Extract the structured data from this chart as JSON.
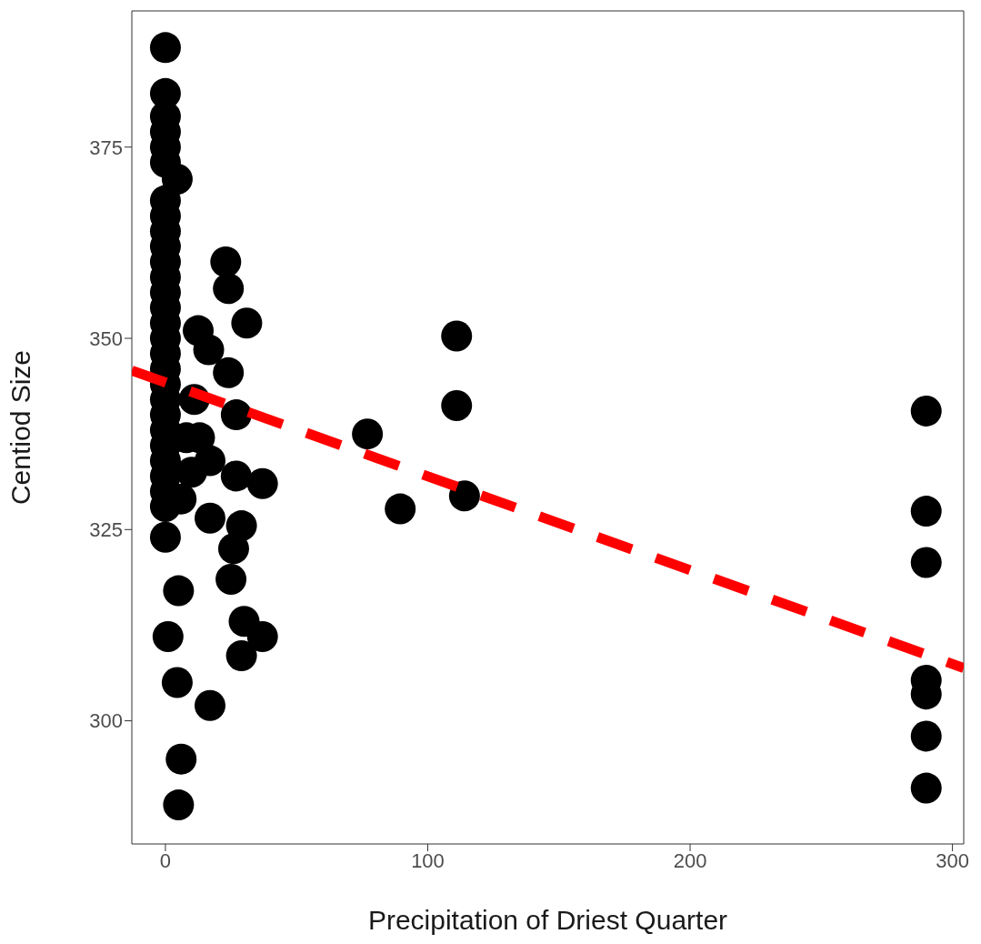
{
  "chart_data": {
    "type": "scatter",
    "xlabel": "Precipitation of Driest Quarter",
    "ylabel": "Centiod Size",
    "xlim": [
      -12.8,
      304.3
    ],
    "ylim": [
      283.9,
      392.8
    ],
    "xticks": [
      0,
      100,
      200,
      300
    ],
    "yticks": [
      300,
      325,
      350,
      375
    ],
    "grid": false,
    "legend": false,
    "marker": "circle",
    "series": [
      {
        "color": "#000000",
        "x": [
          0,
          0,
          0,
          0,
          0,
          0,
          4.5,
          0,
          0,
          0,
          0,
          0,
          0,
          0,
          0,
          0,
          0,
          0,
          0,
          0,
          0,
          0,
          0,
          0,
          0,
          0,
          0,
          0,
          0,
          5,
          1,
          4.5,
          6,
          5,
          17,
          12.5,
          16.5,
          11,
          17,
          17,
          8,
          13,
          10,
          6,
          23,
          24,
          31,
          24,
          27,
          27,
          37,
          29,
          26,
          25,
          30,
          37,
          29,
          77,
          89.5,
          111,
          111,
          114,
          290,
          290,
          290,
          290,
          290,
          290,
          290
        ],
        "values": [
          388,
          382,
          379,
          377,
          375,
          373,
          370.8,
          368,
          366,
          364,
          362,
          360,
          358,
          356,
          354,
          352,
          350,
          348,
          346,
          344,
          342,
          340,
          338,
          336,
          334,
          332,
          330,
          328,
          324,
          317,
          311,
          305,
          295,
          289,
          302,
          351,
          348.5,
          342,
          334,
          326.5,
          337,
          337,
          332.5,
          329,
          360,
          356.5,
          352,
          345.5,
          340,
          332,
          331,
          325.5,
          322.5,
          318.5,
          313,
          311,
          308.5,
          337.5,
          327.7,
          350.3,
          341.2,
          329.4,
          340.5,
          327.4,
          320.7,
          305.3,
          303.5,
          298,
          291.2
        ]
      },
      {
        "type": "line",
        "color": "#ff0000",
        "line_style": "dashed",
        "marker": "none",
        "x": [
          -12.8,
          304.3
        ],
        "values": [
          345.8,
          306.9
        ]
      }
    ]
  }
}
